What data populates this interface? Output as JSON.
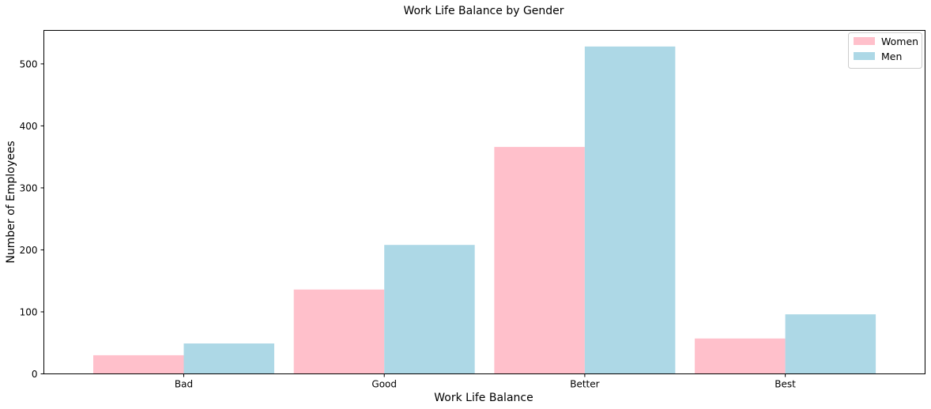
{
  "chart_data": {
    "type": "bar",
    "title": "Work Life Balance by Gender",
    "xlabel": "Work Life Balance",
    "ylabel": "Number of Employees",
    "categories": [
      "Bad",
      "Good",
      "Better",
      "Best"
    ],
    "series": [
      {
        "name": "Women",
        "values": [
          30,
          136,
          366,
          57
        ],
        "color": "#ffc0cb"
      },
      {
        "name": "Men",
        "values": [
          49,
          208,
          528,
          96
        ],
        "color": "#add8e6"
      }
    ],
    "ylim": [
      0,
      554
    ],
    "yticks": [
      "0",
      "100",
      "200",
      "300",
      "400",
      "500"
    ],
    "grid": false,
    "legend_position": "top-right"
  }
}
